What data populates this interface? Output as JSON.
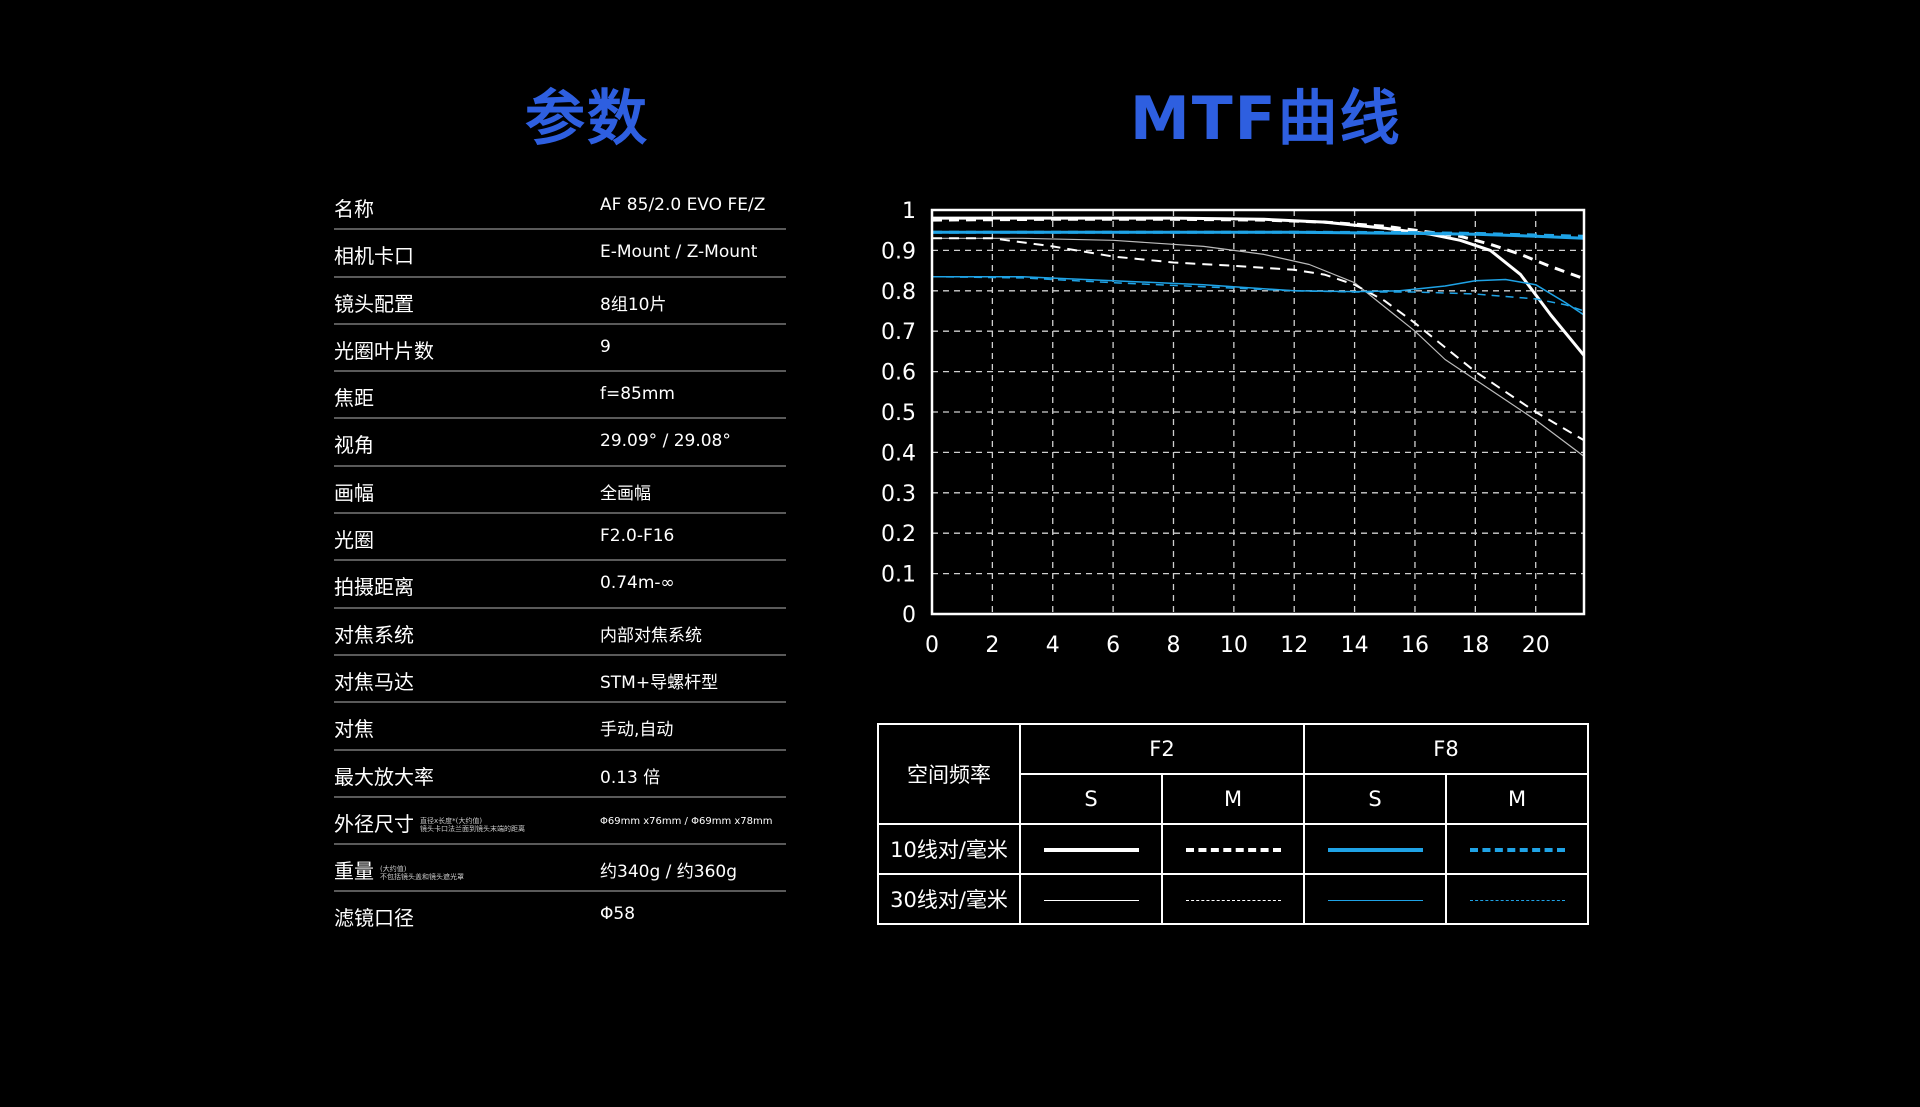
{
  "headings": {
    "specs": "参数",
    "mtf": "MTF曲线"
  },
  "specs": [
    {
      "label": "名称",
      "value": "AF 85/2.0 EVO FE/Z"
    },
    {
      "label": "相机卡口",
      "value": "E-Mount / Z-Mount"
    },
    {
      "label": "镜头配置",
      "value": "8组10片"
    },
    {
      "label": "光圈叶片数",
      "value": "9"
    },
    {
      "label": "焦距",
      "value": "f=85mm"
    },
    {
      "label": "视角",
      "value": "29.09° / 29.08°"
    },
    {
      "label": "画幅",
      "value": "全画幅"
    },
    {
      "label": "光圈",
      "value": "F2.0-F16"
    },
    {
      "label": "拍摄距离",
      "value": "0.74m-∞"
    },
    {
      "label": "对焦系统",
      "value": "内部对焦系统"
    },
    {
      "label": "对焦马达",
      "value": "STM+导螺杆型"
    },
    {
      "label": "对焦",
      "value": "手动,自动"
    },
    {
      "label": "最大放大率",
      "value": "0.13 倍"
    },
    {
      "label": "外径尺寸",
      "note1": "直径x长度*(大约值)",
      "note2": "镜头卡口法兰面到镜头末端的距离",
      "value": "Φ69mm x76mm / Φ69mm x78mm"
    },
    {
      "label": "重量",
      "note1": "(大约值)",
      "note2": "不包括镜头盖和镜头遮光罩",
      "value": "约340g / 约360g"
    },
    {
      "label": "滤镜口径",
      "value": "Φ58"
    }
  ],
  "legend": {
    "spatial_freq": "空间频率",
    "f2": "F2",
    "f8": "F8",
    "s": "S",
    "m": "M",
    "row10": "10线对/毫米",
    "row30": "30线对/毫米"
  },
  "colors": {
    "heading": "#2e5fe0",
    "white_series": "#ffffff",
    "blue_series": "#1fa3e6"
  },
  "chart_data": {
    "type": "line",
    "xlim": [
      0,
      21.6
    ],
    "ylim": [
      0,
      1
    ],
    "x_ticks": [
      0,
      2,
      4,
      6,
      8,
      10,
      12,
      14,
      16,
      18,
      20
    ],
    "y_ticks": [
      0,
      0.1,
      0.2,
      0.3,
      0.4,
      0.5,
      0.6,
      0.7,
      0.8,
      0.9,
      1
    ],
    "y_tick_labels": [
      "0",
      "0.1",
      "0.2",
      "0.3",
      "0.4",
      "0.5",
      "0.6",
      "0.7",
      "0.8",
      "0.9",
      "1"
    ],
    "grid": true,
    "series": [
      {
        "aperture": "F2",
        "freq": 10,
        "orientation": "S",
        "color": "#ffffff",
        "width": 3,
        "dash": "",
        "x": [
          0,
          4,
          8,
          11,
          13,
          15,
          16.5,
          17.5,
          18.5,
          19.5,
          20.5,
          21.6
        ],
        "y": [
          0.98,
          0.98,
          0.98,
          0.977,
          0.97,
          0.955,
          0.94,
          0.925,
          0.9,
          0.84,
          0.74,
          0.64
        ]
      },
      {
        "aperture": "F2",
        "freq": 10,
        "orientation": "M",
        "color": "#ffffff",
        "width": 3,
        "dash": "10,7",
        "x": [
          0,
          4,
          8,
          11,
          13,
          15,
          16.5,
          17.5,
          18.5,
          19.5,
          20.5,
          21.6
        ],
        "y": [
          0.975,
          0.977,
          0.977,
          0.975,
          0.97,
          0.96,
          0.945,
          0.935,
          0.915,
          0.89,
          0.86,
          0.83
        ]
      },
      {
        "aperture": "F2",
        "freq": 30,
        "orientation": "S",
        "color": "#bbbbbb",
        "width": 1.2,
        "dash": "",
        "x": [
          0,
          3,
          6,
          9,
          11,
          12.5,
          14,
          15,
          16,
          17,
          18,
          19,
          20,
          21.6
        ],
        "y": [
          0.93,
          0.93,
          0.925,
          0.91,
          0.89,
          0.865,
          0.82,
          0.76,
          0.7,
          0.63,
          0.58,
          0.53,
          0.48,
          0.39
        ]
      },
      {
        "aperture": "F2",
        "freq": 30,
        "orientation": "M",
        "color": "#ffffff",
        "width": 2,
        "dash": "10,7",
        "x": [
          0,
          2,
          4,
          6,
          8,
          10,
          12,
          13,
          14,
          15,
          16,
          17,
          18,
          19,
          20,
          21.6
        ],
        "y": [
          0.93,
          0.93,
          0.91,
          0.885,
          0.87,
          0.862,
          0.852,
          0.84,
          0.815,
          0.775,
          0.72,
          0.66,
          0.6,
          0.55,
          0.5,
          0.43
        ]
      },
      {
        "aperture": "F8",
        "freq": 10,
        "orientation": "S",
        "color": "#1fa3e6",
        "width": 3,
        "dash": "",
        "x": [
          0,
          6,
          12,
          16,
          18,
          20,
          21.6
        ],
        "y": [
          0.945,
          0.945,
          0.945,
          0.942,
          0.94,
          0.935,
          0.93
        ]
      },
      {
        "aperture": "F8",
        "freq": 10,
        "orientation": "M",
        "color": "#1fa3e6",
        "width": 3,
        "dash": "10,7",
        "x": [
          0,
          6,
          12,
          16,
          18,
          20,
          21.6
        ],
        "y": [
          0.945,
          0.945,
          0.945,
          0.944,
          0.942,
          0.938,
          0.935
        ]
      },
      {
        "aperture": "F8",
        "freq": 30,
        "orientation": "S",
        "color": "#1fa3e6",
        "width": 1.5,
        "dash": "",
        "x": [
          0,
          3,
          6,
          9,
          12,
          14,
          15.5,
          17,
          18,
          19,
          20,
          21,
          21.6
        ],
        "y": [
          0.835,
          0.835,
          0.825,
          0.815,
          0.8,
          0.798,
          0.8,
          0.812,
          0.825,
          0.828,
          0.815,
          0.77,
          0.74
        ]
      },
      {
        "aperture": "F8",
        "freq": 30,
        "orientation": "M",
        "color": "#1fa3e6",
        "width": 1.5,
        "dash": "8,6",
        "x": [
          0,
          3,
          6,
          9,
          12,
          14,
          16,
          18,
          20,
          21,
          21.6
        ],
        "y": [
          0.835,
          0.832,
          0.82,
          0.81,
          0.8,
          0.797,
          0.797,
          0.792,
          0.78,
          0.765,
          0.75
        ]
      }
    ]
  }
}
